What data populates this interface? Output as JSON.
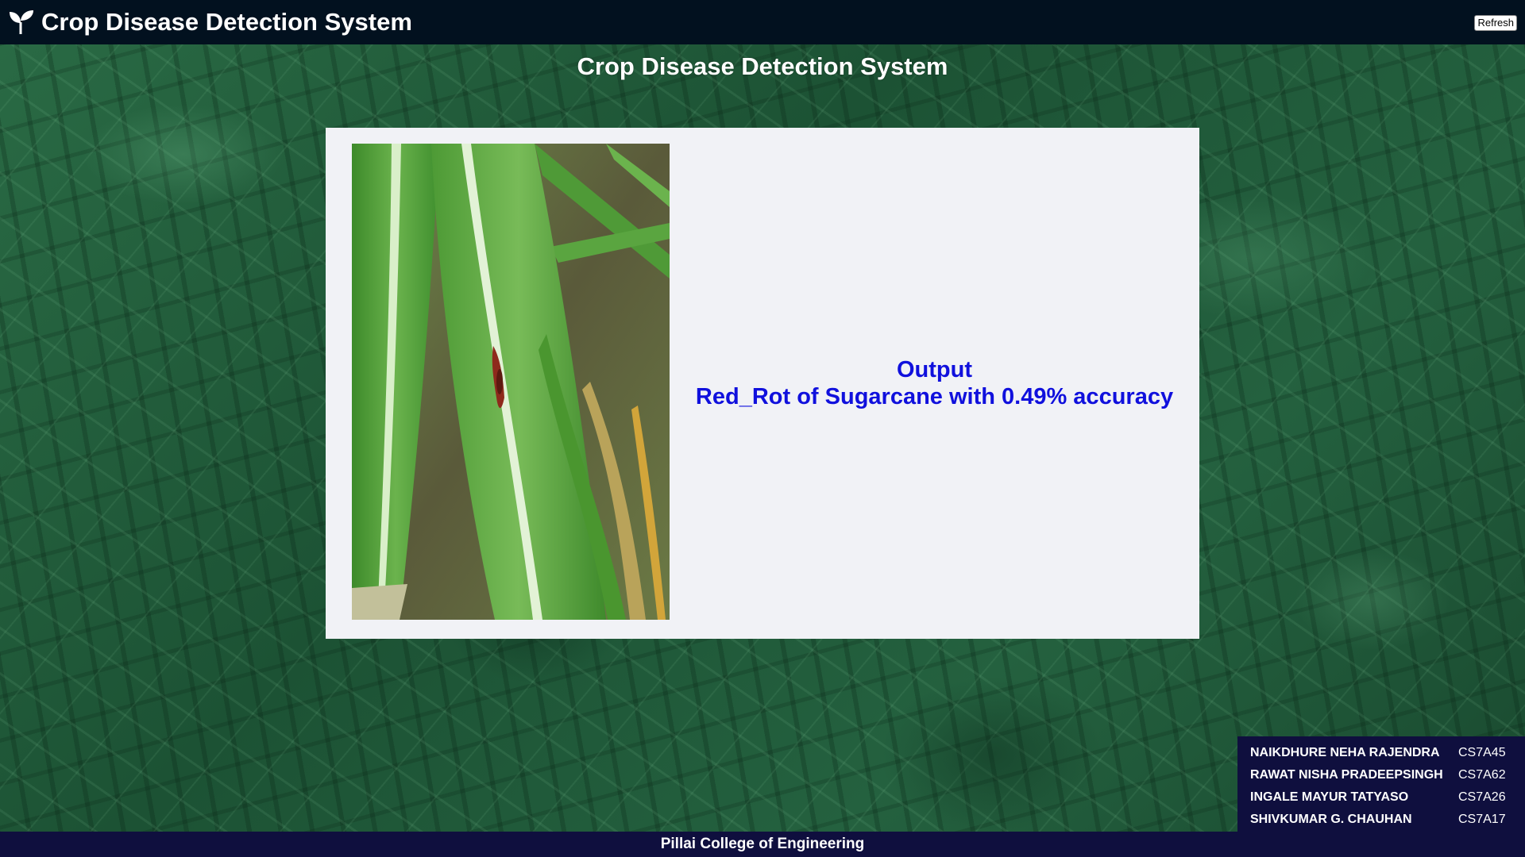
{
  "navbar": {
    "brand_icon": "seedling-icon",
    "title": "Crop Disease Detection System",
    "refresh_label": "Refresh"
  },
  "page": {
    "heading": "Crop Disease Detection System"
  },
  "result": {
    "image_subject": "sugarcane-leaf-image",
    "output_label": "Output",
    "output_text": "Red_Rot of Sugarcane with 0.49% accuracy",
    "output_color": "#1010dd"
  },
  "team": {
    "members": [
      {
        "name": "NAIKDHURE NEHA RAJENDRA",
        "roll": "CS7A45"
      },
      {
        "name": "RAWAT NISHA PRADEEPSINGH",
        "roll": "CS7A62"
      },
      {
        "name": "INGALE MAYUR TATYASO",
        "roll": "CS7A26"
      },
      {
        "name": "SHIVKUMAR G. CHAUHAN",
        "roll": "CS7A17"
      }
    ]
  },
  "footer": {
    "text": "Pillai College of Engineering"
  },
  "colors": {
    "navbar_bg": "#02111f",
    "footer_bg": "#0f0f3e",
    "card_bg": "#f1f2f6"
  }
}
